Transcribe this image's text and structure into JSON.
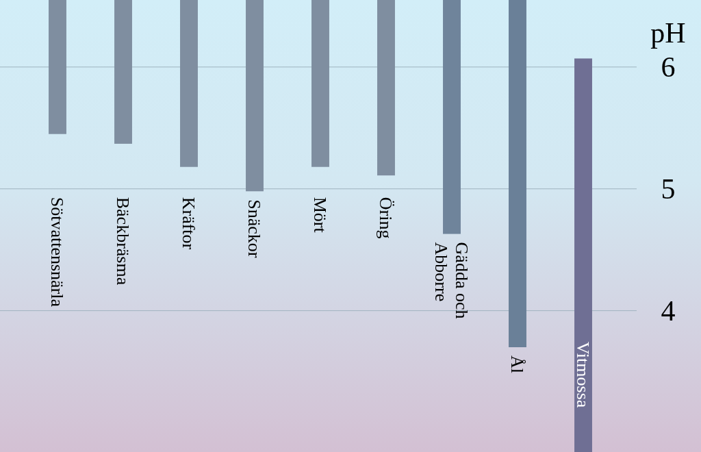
{
  "chart_data": {
    "type": "bar",
    "ylabel": "pH",
    "categories": [
      "Sötvattensnärla",
      "Bäckbräsma",
      "Kräftor",
      "Snäckor",
      "Mört",
      "Öring",
      "Gädda och Abborre",
      "Ål",
      "Vitmossa"
    ],
    "base": [
      5.45,
      5.37,
      5.18,
      4.98,
      5.18,
      5.11,
      4.63,
      3.7,
      2.84
    ],
    "values": [
      1.1,
      1.18,
      1.37,
      1.57,
      1.37,
      1.44,
      1.92,
      2.85,
      3.23
    ],
    "colors": [
      "#7f8ea0",
      "#7f8ea0",
      "#7f8ea0",
      "#7f8ea0",
      "#7f8ea0",
      "#7f8ea0",
      "#6f849b",
      "#6a8098",
      "#6f6f94"
    ],
    "ylim": [
      2.84,
      6.55
    ],
    "yticks": [
      4,
      5,
      6
    ],
    "grid": "y"
  }
}
